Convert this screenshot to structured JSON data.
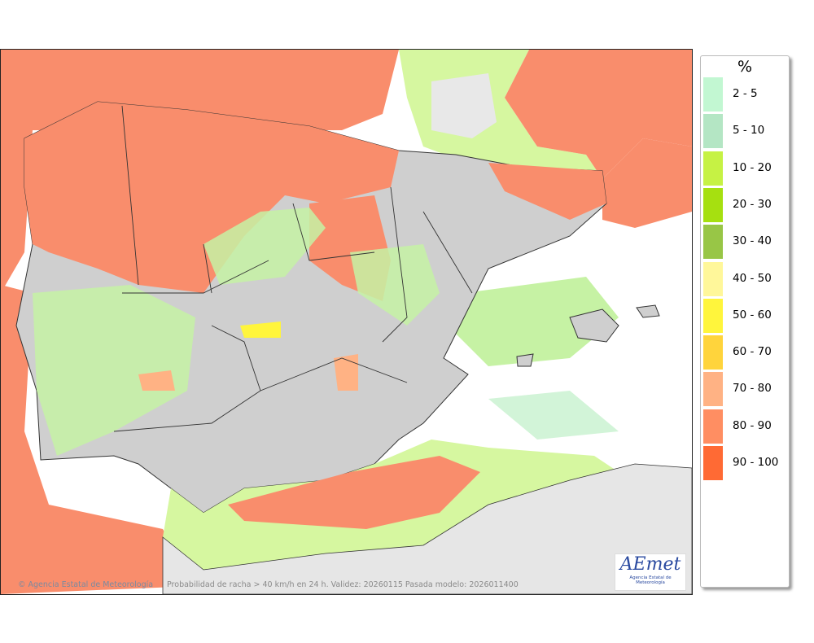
{
  "map": {
    "caption": "Probabilidad de racha > 40 km/h en 24 h. Validez: 20260115 Pasada modelo: 2026011400",
    "credit": "Agencia Estatal de Meteorología",
    "logo": {
      "name": "AEmet",
      "subtitle": "Agencia Estatal de Meteorología"
    }
  },
  "legend": {
    "title": "%",
    "items": [
      {
        "label": "2 - 5",
        "color": "#c2f7d2"
      },
      {
        "label": "5 - 10",
        "color": "#b4e6c4"
      },
      {
        "label": "10 - 20",
        "color": "#c6f244"
      },
      {
        "label": "20 - 30",
        "color": "#a6e010"
      },
      {
        "label": "30 - 40",
        "color": "#98c646"
      },
      {
        "label": "40 - 50",
        "color": "#fff79a"
      },
      {
        "label": "50 - 60",
        "color": "#fff53c"
      },
      {
        "label": "60 - 70",
        "color": "#ffd43c"
      },
      {
        "label": "70 - 80",
        "color": "#ffb284"
      },
      {
        "label": "80 - 90",
        "color": "#ff8e62"
      },
      {
        "label": "90 - 100",
        "color": "#ff6a34"
      }
    ]
  }
}
